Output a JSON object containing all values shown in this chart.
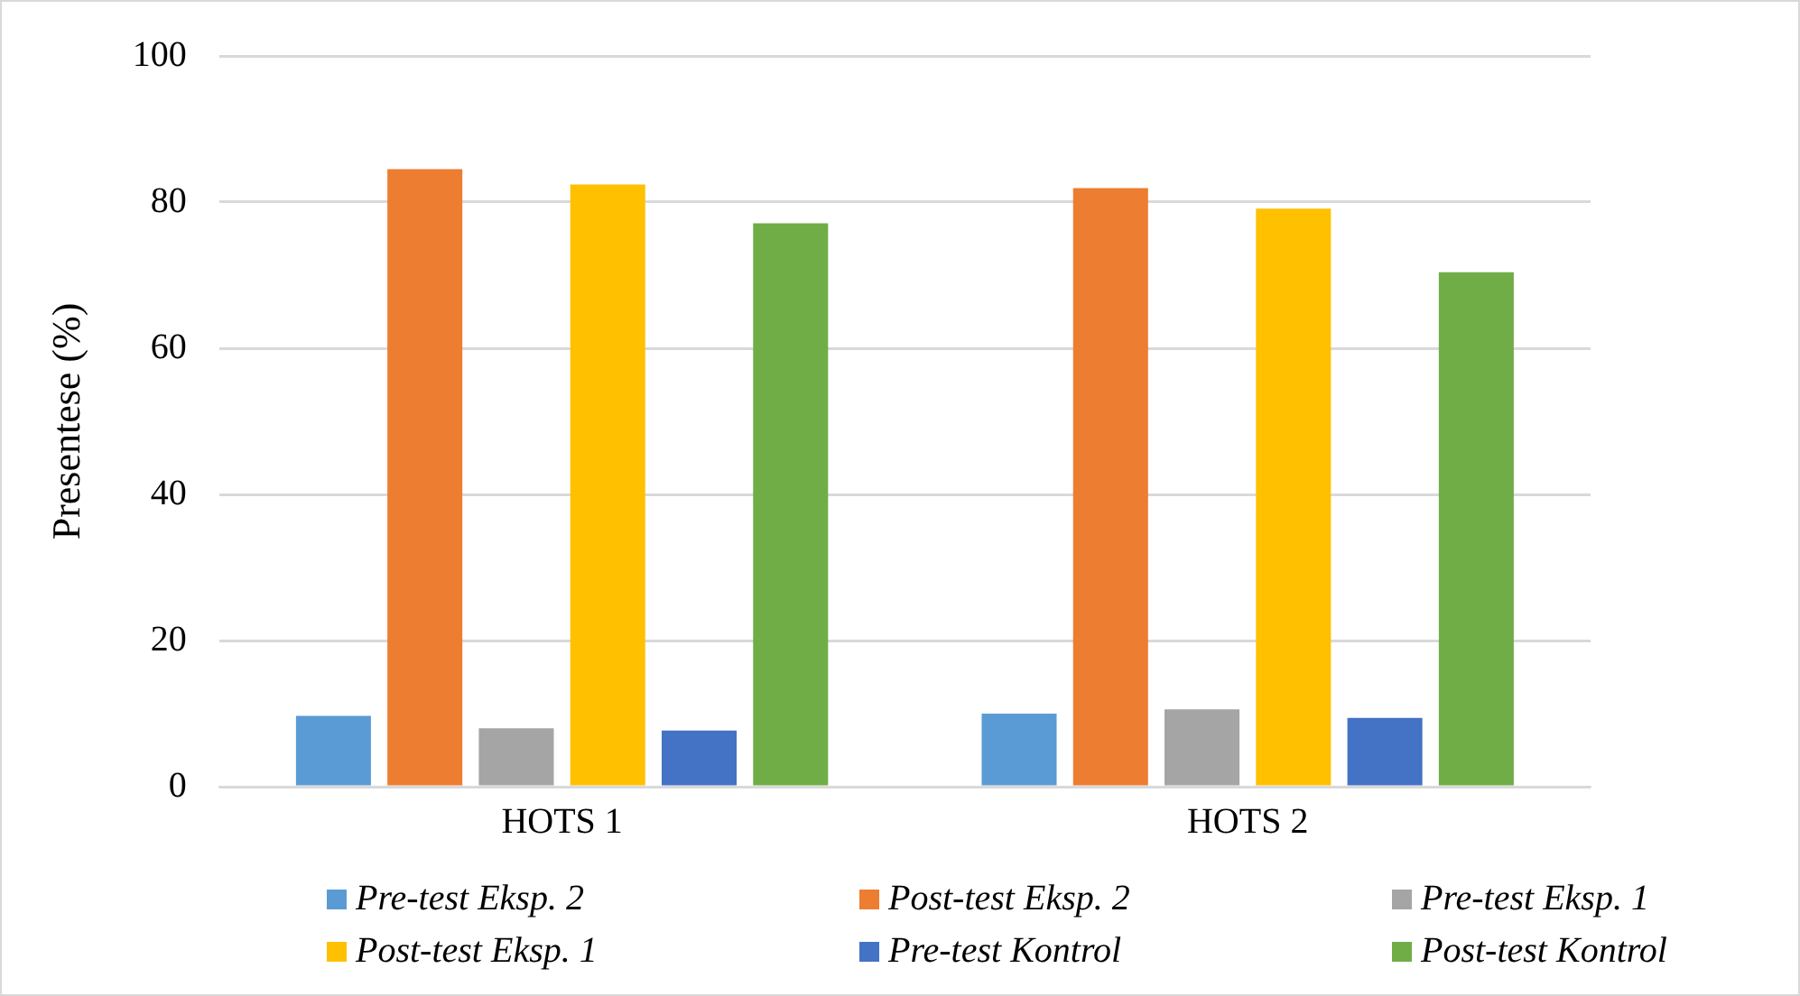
{
  "chart_data": {
    "type": "bar",
    "ylabel": "Presentese (%)",
    "categories": [
      "HOTS 1",
      "HOTS 2"
    ],
    "series": [
      {
        "name": "Pre-test Eksp. 2",
        "color": "#5b9bd5",
        "values": [
          9.7,
          10.0
        ]
      },
      {
        "name": "Post-test Eksp. 2",
        "color": "#ed7d31",
        "values": [
          84.5,
          81.9
        ]
      },
      {
        "name": "Pre-test Eksp. 1",
        "color": "#a5a5a5",
        "values": [
          8.0,
          10.6
        ]
      },
      {
        "name": "Post-test Eksp. 1",
        "color": "#ffc000",
        "values": [
          82.4,
          79.1
        ]
      },
      {
        "name": "Pre-test Kontrol",
        "color": "#4472c4",
        "values": [
          7.7,
          9.4
        ]
      },
      {
        "name": "Post-test Kontrol",
        "color": "#70ad47",
        "values": [
          77.1,
          70.4
        ]
      }
    ],
    "ylim": [
      0,
      100
    ],
    "yticks": [
      0,
      20,
      40,
      60,
      80,
      100
    ],
    "grid": "y",
    "legend": "bottom"
  }
}
